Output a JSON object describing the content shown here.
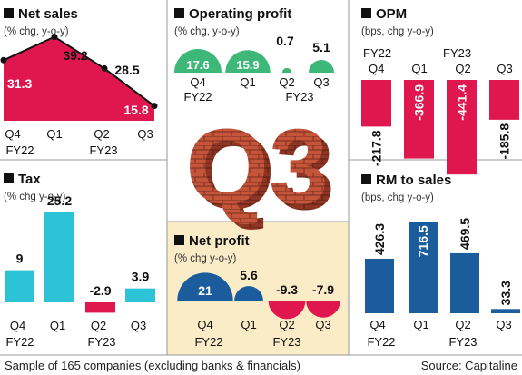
{
  "colors": {
    "pink": "#e0174f",
    "green": "#3db878",
    "teal": "#2cc3d6",
    "blue": "#1b5c9c",
    "cream": "#fbecc8",
    "divider": "#9a9a9a",
    "brick": "#c4553a"
  },
  "footer": {
    "note": "Sample of 165 companies (excluding banks & financials)",
    "source": "Source: Capitaline"
  },
  "center_graphic": {
    "text": "Q3"
  },
  "chart_data": [
    {
      "id": "net_sales",
      "type": "area",
      "title": "Net sales",
      "subtitle": "(% chg, y-o-y)",
      "categories": [
        "Q4",
        "Q1",
        "Q2",
        "Q3"
      ],
      "year_labels": [
        "FY22",
        "FY23"
      ],
      "values": [
        31.3,
        39.2,
        28.5,
        15.8
      ]
    },
    {
      "id": "operating_profit",
      "type": "bubble",
      "title": "Operating profit",
      "subtitle": "(% chg, y-o-y)",
      "categories": [
        "Q4",
        "Q1",
        "Q2",
        "Q3"
      ],
      "year_labels": [
        "FY22",
        "FY23"
      ],
      "values": [
        17.6,
        15.9,
        0.7,
        5.1
      ]
    },
    {
      "id": "opm",
      "type": "bar",
      "title": "OPM",
      "subtitle": "(bps, chg y-o-y)",
      "categories": [
        "Q4",
        "Q1",
        "Q2",
        "Q3"
      ],
      "year_labels": [
        "FY22",
        "FY23"
      ],
      "values": [
        -217.8,
        -366.9,
        -441.4,
        -185.8
      ]
    },
    {
      "id": "tax",
      "type": "bar",
      "title": "Tax",
      "subtitle": "(% chg y-o-y)",
      "categories": [
        "Q4",
        "Q1",
        "Q2",
        "Q3"
      ],
      "year_labels": [
        "FY22",
        "FY23"
      ],
      "values": [
        9,
        25.2,
        -2.9,
        3.9
      ]
    },
    {
      "id": "net_profit",
      "type": "bubble",
      "title": "Net profit",
      "subtitle": "(% chg y-o-y)",
      "categories": [
        "Q4",
        "Q1",
        "Q2",
        "Q3"
      ],
      "year_labels": [
        "FY22",
        "FY23"
      ],
      "values": [
        21,
        5.6,
        -9.3,
        -7.9
      ]
    },
    {
      "id": "rm_to_sales",
      "type": "bar",
      "title": "RM to sales",
      "subtitle": "(bps, chg y-o-y)",
      "categories": [
        "Q4",
        "Q1",
        "Q2",
        "Q3"
      ],
      "year_labels": [
        "FY22",
        "FY23"
      ],
      "values": [
        426.3,
        716.5,
        469.5,
        33.3
      ]
    }
  ]
}
